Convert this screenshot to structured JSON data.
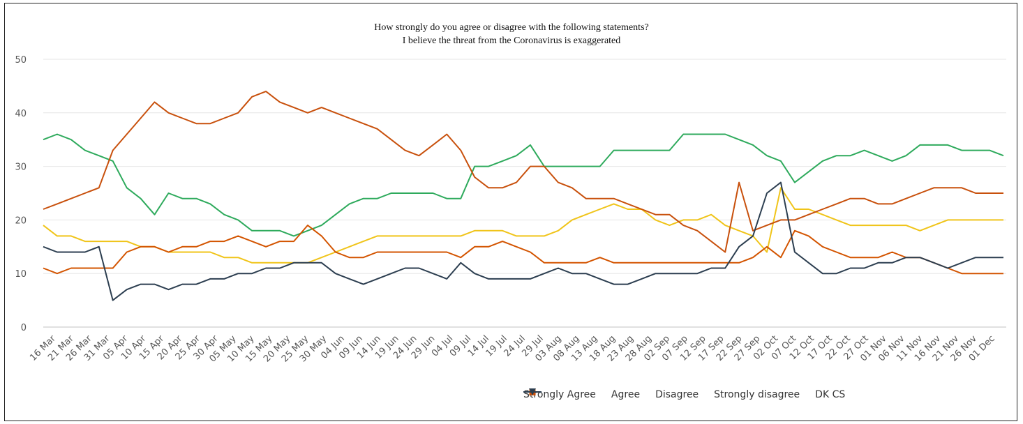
{
  "chart_data": {
    "type": "line",
    "title": "How strongly do you agree or disagree with the following statements?",
    "subtitle": "I believe the threat from the Coronavirus is exaggerated",
    "ylim": [
      0,
      50
    ],
    "yticks": [
      0,
      10,
      20,
      30,
      40,
      50
    ],
    "x_tick_labels": [
      "16 Mar",
      "21 Mar",
      "26 Mar",
      "31 Mar",
      "05 Apr",
      "10 Apr",
      "15 Apr",
      "20 Apr",
      "25 Apr",
      "30 Apr",
      "05 May",
      "10 May",
      "15 May",
      "20 May",
      "25 May",
      "30 May",
      "04 Jun",
      "09 Jun",
      "14 Jun",
      "19 Jun",
      "24 Jun",
      "29 Jun",
      "04 Jul",
      "09 Jul",
      "14 Jul",
      "19 Jul",
      "24 Jul",
      "29 Jul",
      "03 Aug",
      "08 Aug",
      "13 Aug",
      "18 Aug",
      "23 Aug",
      "28 Aug",
      "02 Sep",
      "07 Sep",
      "12 Sep",
      "17 Sep",
      "22 Sep",
      "27 Sep",
      "02 Oct",
      "07 Oct",
      "12 Oct",
      "17 Oct",
      "22 Oct",
      "27 Oct",
      "01 Nov",
      "06 Nov",
      "11 Nov",
      "16 Nov",
      "21 Nov",
      "26 Nov",
      "01 Dec"
    ],
    "grid": true,
    "legend_position": "bottom-right",
    "series": [
      {
        "name": "Strongly Agree",
        "color": "#2eaa5c",
        "marker": "circle",
        "values": [
          35,
          36,
          35,
          33,
          32,
          31,
          26,
          24,
          21,
          25,
          24,
          24,
          23,
          21,
          20,
          18,
          18,
          18,
          17,
          18,
          19,
          21,
          23,
          24,
          24,
          25,
          25,
          25,
          25,
          24,
          24,
          30,
          30,
          31,
          32,
          34,
          30,
          30,
          30,
          30,
          30,
          33,
          33,
          33,
          33,
          33,
          36,
          36,
          36,
          36,
          35,
          34,
          32,
          31,
          27,
          29,
          31,
          32,
          32,
          33,
          32,
          31,
          32,
          34,
          34,
          34,
          33,
          33,
          33,
          32
        ]
      },
      {
        "name": "Agree",
        "color": "#f0c419",
        "marker": "diamond",
        "values": [
          19,
          17,
          17,
          16,
          16,
          16,
          16,
          15,
          15,
          14,
          14,
          14,
          14,
          13,
          13,
          12,
          12,
          12,
          12,
          12,
          13,
          14,
          15,
          16,
          17,
          17,
          17,
          17,
          17,
          17,
          17,
          18,
          18,
          18,
          17,
          17,
          17,
          18,
          20,
          21,
          22,
          23,
          22,
          22,
          20,
          19,
          20,
          20,
          21,
          19,
          18,
          17,
          14,
          26,
          22,
          22,
          21,
          20,
          19,
          19,
          19,
          19,
          19,
          18,
          19,
          20,
          20,
          20,
          20,
          20
        ]
      },
      {
        "name": "Disagree",
        "color": "#d35400",
        "marker": "square",
        "values": [
          11,
          10,
          11,
          11,
          11,
          11,
          14,
          15,
          15,
          14,
          15,
          15,
          16,
          16,
          17,
          16,
          15,
          16,
          16,
          19,
          17,
          14,
          13,
          13,
          14,
          14,
          14,
          14,
          14,
          14,
          13,
          15,
          15,
          16,
          15,
          14,
          12,
          12,
          12,
          12,
          13,
          12,
          12,
          12,
          12,
          12,
          12,
          12,
          12,
          12,
          12,
          13,
          15,
          13,
          18,
          17,
          15,
          14,
          13,
          13,
          13,
          14,
          13,
          13,
          12,
          11,
          10,
          10,
          10,
          10
        ]
      },
      {
        "name": "Strongly disagree",
        "color": "#c8500c",
        "marker": "triangle",
        "values": [
          22,
          23,
          24,
          25,
          26,
          33,
          36,
          39,
          42,
          40,
          39,
          38,
          38,
          39,
          40,
          43,
          44,
          42,
          41,
          40,
          41,
          40,
          39,
          38,
          37,
          35,
          33,
          32,
          34,
          36,
          33,
          28,
          26,
          26,
          27,
          30,
          30,
          27,
          26,
          24,
          24,
          24,
          23,
          22,
          21,
          21,
          19,
          18,
          16,
          14,
          27,
          18,
          19,
          20,
          20,
          21,
          22,
          23,
          24,
          24,
          23,
          23,
          24,
          25,
          26,
          26,
          26,
          25,
          25,
          25
        ]
      },
      {
        "name": "DK CS",
        "color": "#2c3e50",
        "marker": "triangle-down",
        "values": [
          15,
          14,
          14,
          14,
          15,
          5,
          7,
          8,
          8,
          7,
          8,
          8,
          9,
          9,
          10,
          10,
          11,
          11,
          12,
          12,
          12,
          10,
          9,
          8,
          9,
          10,
          11,
          11,
          10,
          9,
          12,
          10,
          9,
          9,
          9,
          9,
          10,
          11,
          10,
          10,
          9,
          8,
          8,
          9,
          10,
          10,
          10,
          10,
          11,
          11,
          15,
          17,
          25,
          27,
          14,
          12,
          10,
          10,
          11,
          11,
          12,
          12,
          13,
          13,
          12,
          11,
          12,
          13,
          13,
          13
        ]
      }
    ]
  }
}
